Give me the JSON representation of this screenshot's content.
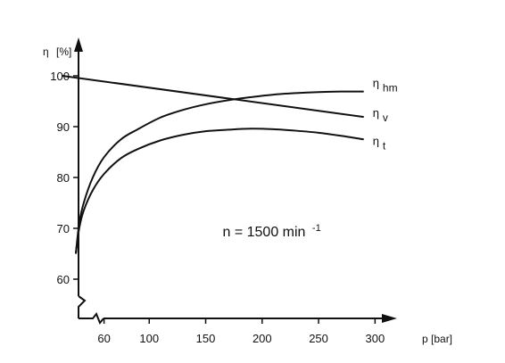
{
  "chart_data": {
    "type": "line",
    "title": "",
    "xlabel": "p [bar]",
    "ylabel_symbol": "η",
    "ylabel_unit": "[%]",
    "xlim": [
      20,
      310
    ],
    "ylim": [
      58,
      104
    ],
    "x_ticks": [
      60,
      100,
      150,
      200,
      250,
      300
    ],
    "y_ticks": [
      60,
      70,
      80,
      90,
      100
    ],
    "grid": false,
    "legend": "inline labels at right end of curves",
    "annotation": {
      "base": "n = 1500 min",
      "sup": "-1",
      "x": 165,
      "y": 69.5
    },
    "series": [
      {
        "name": "η hm",
        "label_symbol": "η",
        "label_sub": "hm",
        "points": [
          [
            35,
            65
          ],
          [
            38,
            71
          ],
          [
            42,
            75
          ],
          [
            50,
            80
          ],
          [
            60,
            84
          ],
          [
            75,
            87.5
          ],
          [
            90,
            89.5
          ],
          [
            110,
            91.8
          ],
          [
            130,
            93.3
          ],
          [
            150,
            94.4
          ],
          [
            170,
            95.2
          ],
          [
            190,
            95.8
          ],
          [
            210,
            96.3
          ],
          [
            230,
            96.6
          ],
          [
            250,
            96.8
          ],
          [
            270,
            96.9
          ],
          [
            290,
            96.9
          ]
        ]
      },
      {
        "name": "η v",
        "label_symbol": "η",
        "label_sub": "v",
        "points": [
          [
            23,
            100
          ],
          [
            290,
            91.9
          ]
        ]
      },
      {
        "name": "η t",
        "label_symbol": "η",
        "label_sub": "t",
        "points": [
          [
            35,
            65
          ],
          [
            38,
            70
          ],
          [
            42,
            73.5
          ],
          [
            50,
            77.5
          ],
          [
            60,
            80.7
          ],
          [
            75,
            83.8
          ],
          [
            90,
            85.6
          ],
          [
            110,
            87.3
          ],
          [
            130,
            88.4
          ],
          [
            150,
            89.1
          ],
          [
            170,
            89.4
          ],
          [
            190,
            89.6
          ],
          [
            210,
            89.5
          ],
          [
            230,
            89.2
          ],
          [
            250,
            88.8
          ],
          [
            270,
            88.2
          ],
          [
            290,
            87.5
          ]
        ]
      }
    ]
  }
}
